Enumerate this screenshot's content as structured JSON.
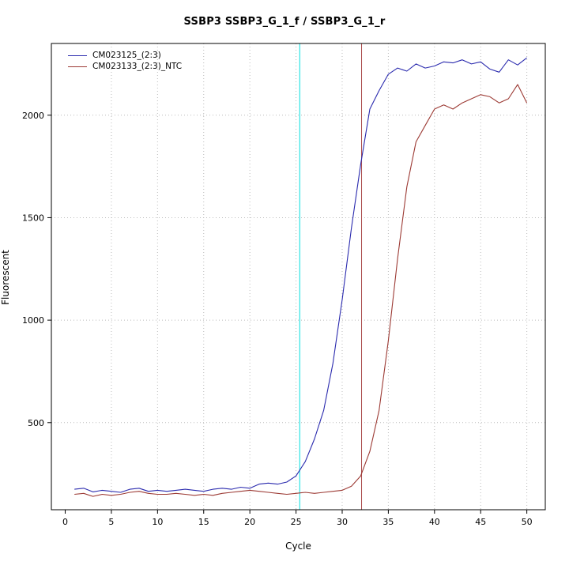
{
  "chart_data": {
    "type": "line",
    "title": "SSBP3  SSBP3_G_1_f / SSBP3_G_1_r",
    "xlabel": "Cycle",
    "ylabel": "Fluorescent",
    "xlim": [
      -1.5,
      52
    ],
    "ylim": [
      75,
      2350
    ],
    "xticks": [
      0,
      5,
      10,
      15,
      20,
      25,
      30,
      35,
      40,
      45,
      50
    ],
    "yticks": [
      500,
      1000,
      1500,
      2000
    ],
    "grid": {
      "x": [
        5,
        10,
        15,
        20,
        25,
        30,
        35,
        40,
        45,
        50
      ],
      "y": [
        500,
        1000,
        1500,
        2000
      ],
      "color": "#bbbbbb",
      "style": "dotted"
    },
    "x": [
      1,
      2,
      3,
      4,
      5,
      6,
      7,
      8,
      9,
      10,
      11,
      12,
      13,
      14,
      15,
      16,
      17,
      18,
      19,
      20,
      21,
      22,
      23,
      24,
      25,
      26,
      27,
      28,
      29,
      30,
      31,
      32,
      33,
      34,
      35,
      36,
      37,
      38,
      39,
      40,
      41,
      42,
      43,
      44,
      45,
      46,
      47,
      48,
      49,
      50
    ],
    "series": [
      {
        "name": "CM023125_(2:3)",
        "color": "#2a2aae",
        "values": [
          175,
          180,
          162,
          170,
          165,
          160,
          175,
          180,
          165,
          170,
          165,
          170,
          175,
          170,
          165,
          175,
          180,
          175,
          185,
          180,
          200,
          205,
          200,
          210,
          240,
          310,
          420,
          560,
          790,
          1100,
          1450,
          1760,
          2030,
          2120,
          2200,
          2230,
          2215,
          2250,
          2230,
          2240,
          2260,
          2255,
          2270,
          2250,
          2260,
          2225,
          2210,
          2270,
          2245,
          2280
        ]
      },
      {
        "name": "CM023133_(2:3)_NTC",
        "color": "#9c3a34",
        "values": [
          150,
          155,
          140,
          150,
          145,
          150,
          160,
          165,
          155,
          150,
          150,
          155,
          150,
          145,
          150,
          145,
          155,
          160,
          165,
          170,
          165,
          160,
          155,
          150,
          155,
          160,
          155,
          160,
          165,
          170,
          190,
          240,
          360,
          560,
          900,
          1300,
          1650,
          1870,
          1950,
          2030,
          2050,
          2030,
          2060,
          2080,
          2100,
          2090,
          2060,
          2080,
          2150,
          2060
        ]
      }
    ],
    "threshold_lines": [
      {
        "x": 25.4,
        "color": "#00dede",
        "style": "solid"
      },
      {
        "x": 32.1,
        "color": "#a84848",
        "style": "solid"
      }
    ],
    "legend_position": "top-left",
    "axis_color": "#000000"
  }
}
